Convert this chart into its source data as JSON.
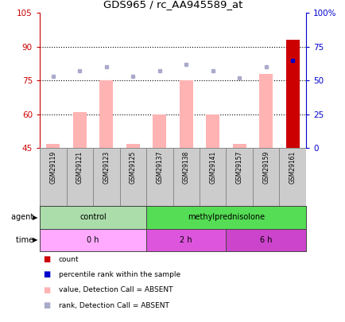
{
  "title": "GDS965 / rc_AA945589_at",
  "samples": [
    "GSM29119",
    "GSM29121",
    "GSM29123",
    "GSM29125",
    "GSM29137",
    "GSM29138",
    "GSM29141",
    "GSM29157",
    "GSM29159",
    "GSM29161"
  ],
  "bar_values": [
    47,
    61,
    75,
    47,
    60,
    75,
    60,
    47,
    78,
    93
  ],
  "bar_bottom": 45,
  "rank_values_pct": [
    53,
    57,
    60,
    53,
    57,
    62,
    57,
    52,
    60,
    65
  ],
  "bar_color": "#ffb3b3",
  "rank_dot_color": "#aaaacc",
  "last_bar_color": "#cc0000",
  "last_rank_color": "#0000cc",
  "ylim_left": [
    45,
    105
  ],
  "ylim_right": [
    0,
    100
  ],
  "yticks_left": [
    45,
    60,
    75,
    90,
    105
  ],
  "ytick_labels_left": [
    "45",
    "60",
    "75",
    "90",
    "105"
  ],
  "yticks_right_vals": [
    0,
    25,
    50,
    75,
    100
  ],
  "ytick_labels_right": [
    "0",
    "25",
    "50",
    "75",
    "100%"
  ],
  "hlines": [
    60,
    75,
    90
  ],
  "agent_groups": [
    {
      "label": "control",
      "start": 0,
      "end": 4,
      "color": "#aaddaa"
    },
    {
      "label": "methylprednisolone",
      "start": 4,
      "end": 10,
      "color": "#55dd55"
    }
  ],
  "time_groups": [
    {
      "label": "0 h",
      "start": 0,
      "end": 4,
      "color": "#ffaaff"
    },
    {
      "label": "2 h",
      "start": 4,
      "end": 7,
      "color": "#dd55dd"
    },
    {
      "label": "6 h",
      "start": 7,
      "end": 10,
      "color": "#cc44cc"
    }
  ],
  "legend_items": [
    {
      "color": "#cc0000",
      "label": "count"
    },
    {
      "color": "#0000cc",
      "label": "percentile rank within the sample"
    },
    {
      "color": "#ffb3b3",
      "label": "value, Detection Call = ABSENT"
    },
    {
      "color": "#aaaacc",
      "label": "rank, Detection Call = ABSENT"
    }
  ],
  "left_axis_color": "#cc0000",
  "right_axis_color": "#0000cc",
  "background_sample_row": "#cccccc",
  "sample_col_border": "#888888"
}
